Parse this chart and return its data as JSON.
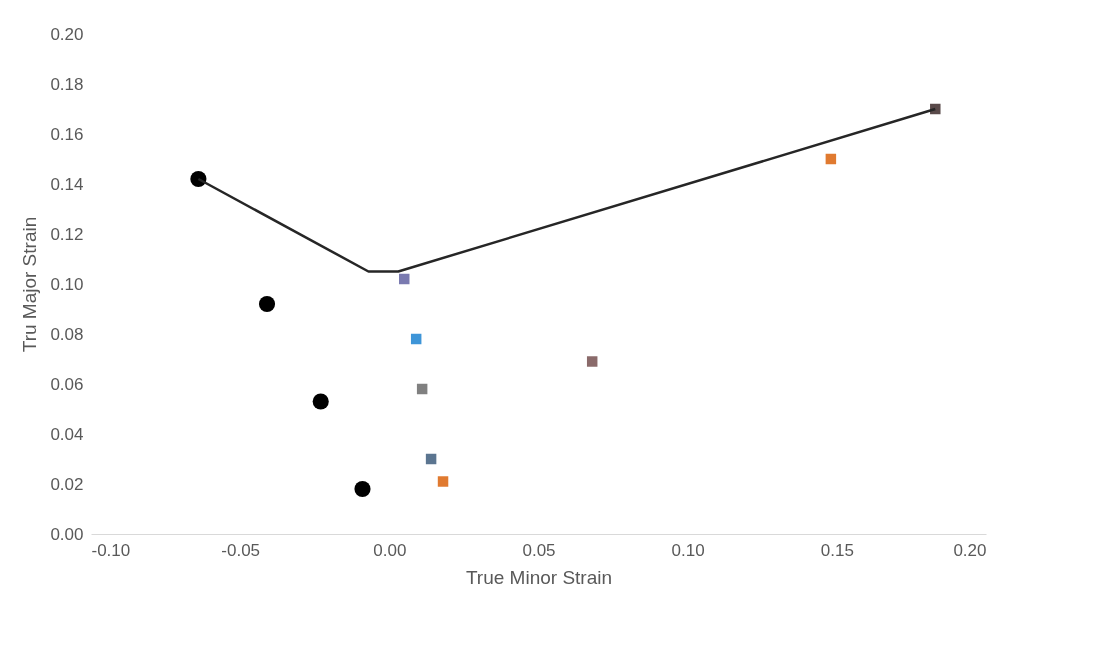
{
  "chart_data": {
    "type": "scatter",
    "xlabel": "True Minor Strain",
    "ylabel": "Tru Major Strain",
    "xlim": [
      -0.1,
      0.2
    ],
    "xticks": [
      {
        "value": -0.1,
        "label": "-0.10"
      },
      {
        "value": -0.05,
        "label": "-0.05"
      },
      {
        "value": 0,
        "label": "0.00"
      },
      {
        "value": 0.05,
        "label": "0.05"
      },
      {
        "value": 0.1,
        "label": "0.10"
      },
      {
        "value": 0.15,
        "label": "0.15"
      },
      {
        "value": 0.2,
        "label": "0.20"
      }
    ],
    "ylim": [
      0,
      0.2
    ],
    "yticks": [
      {
        "value": 0,
        "label": "0.00"
      },
      {
        "value": 0.02,
        "label": "0.02"
      },
      {
        "value": 0.04,
        "label": "0.04"
      },
      {
        "value": 0.06,
        "label": "0.06"
      },
      {
        "value": 0.08,
        "label": "0.08"
      },
      {
        "value": 0.1,
        "label": "0.10"
      },
      {
        "value": 0.12,
        "label": "0.12"
      },
      {
        "value": 0.14,
        "label": "0.14"
      },
      {
        "value": 0.16,
        "label": "0.16"
      },
      {
        "value": 0.18,
        "label": "0.18"
      },
      {
        "value": 0.2,
        "label": "0.20"
      }
    ],
    "grid": false,
    "marker": "circle",
    "series": [
      {
        "color": "#000000",
        "x": [
          -0.064,
          -0.041,
          -0.023,
          -0.009
        ],
        "values": [
          0.142,
          0.092,
          0.053,
          0.018
        ]
      },
      {
        "marker": "square",
        "colors": [
          "#7a7ab0",
          "#3e95d8",
          "#808080",
          "#5b7590",
          "#e07a30",
          "#8a6a6a",
          "#e07a30",
          "#5a4a4a"
        ],
        "x": [
          0.005,
          0.009,
          0.011,
          0.014,
          0.018,
          0.068,
          0.148,
          0.183
        ],
        "values": [
          0.102,
          0.078,
          0.058,
          0.03,
          0.021,
          0.069,
          0.15,
          0.17
        ]
      },
      {
        "type": "line",
        "color": "#262626",
        "marker": "none",
        "line_style": "solid",
        "x": [
          -0.064,
          -0.007,
          0.003,
          0.183
        ],
        "values": [
          0.142,
          0.105,
          0.105,
          0.17
        ]
      }
    ]
  }
}
